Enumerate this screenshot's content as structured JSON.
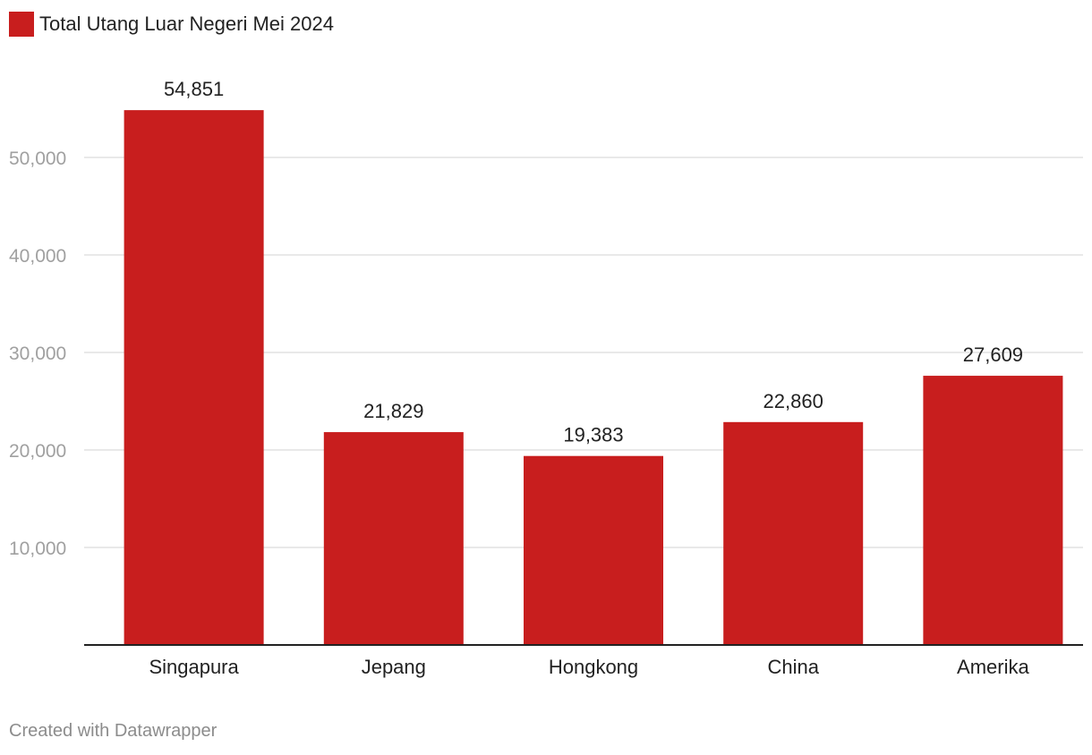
{
  "legend": {
    "label": "Total Utang Luar Negeri Mei 2024",
    "color": "#c81e1e"
  },
  "footer": {
    "credit": "Created with Datawrapper"
  },
  "chart_data": {
    "type": "bar",
    "categories": [
      "Singapura",
      "Jepang",
      "Hongkong",
      "China",
      "Amerika"
    ],
    "series": [
      {
        "name": "Total Utang Luar Negeri Mei 2024",
        "values": [
          54851,
          21829,
          19383,
          22860,
          27609
        ],
        "value_labels": [
          "54,851",
          "21,829",
          "19,383",
          "22,860",
          "27,609"
        ]
      }
    ],
    "ylim": [
      0,
      60000
    ],
    "yticks": [
      10000,
      20000,
      30000,
      40000,
      50000
    ],
    "ytick_labels": [
      "10,000",
      "20,000",
      "30,000",
      "40,000",
      "50,000"
    ],
    "grid": true,
    "legend_position": "top-left",
    "colors": {
      "bar": "#c81e1e",
      "grid": "#e2e2e2",
      "axis": "#222222"
    }
  }
}
